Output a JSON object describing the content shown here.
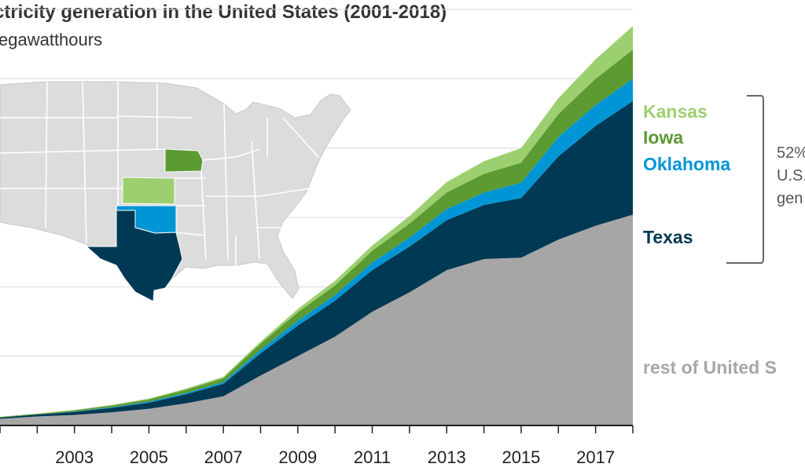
{
  "title": "ctricity generation in the United States (2001-2018)",
  "subtitle": "egawatthours",
  "colors": {
    "rest": "#a6a6a6",
    "texas": "#003953",
    "oklahoma": "#0096d6",
    "iowa": "#5c9a32",
    "kansas": "#9ccf6f",
    "grid": "#d9d9d9",
    "map_state": "#dcdcdc",
    "map_border": "#ffffff",
    "bracket": "#666666"
  },
  "chart_data": {
    "type": "area",
    "stacked": true,
    "x": [
      2001,
      2002,
      2003,
      2004,
      2005,
      2006,
      2007,
      2008,
      2009,
      2010,
      2011,
      2012,
      2013,
      2014,
      2015,
      2016,
      2017,
      2018
    ],
    "xtick_labels": [
      "2003",
      "2005",
      "2007",
      "2009",
      "2011",
      "2013",
      "2015",
      "2017"
    ],
    "xtick_values": [
      2003,
      2005,
      2007,
      2009,
      2011,
      2013,
      2015,
      2017
    ],
    "ylim": [
      0,
      300000
    ],
    "grid": true,
    "series": [
      {
        "name": "rest of United S",
        "color_key": "rest",
        "values": [
          4800,
          6500,
          7600,
          9500,
          12000,
          16000,
          21000,
          36000,
          50000,
          64000,
          82000,
          96000,
          112000,
          120000,
          121000,
          134000,
          144000,
          152000
        ]
      },
      {
        "name": "Texas",
        "color_key": "texas",
        "values": [
          900,
          1400,
          2200,
          3200,
          4400,
          6500,
          9000,
          16000,
          22000,
          26000,
          30000,
          33000,
          36000,
          39000,
          43000,
          60000,
          72000,
          82000
        ]
      },
      {
        "name": "Oklahoma",
        "color_key": "oklahoma",
        "values": [
          0,
          0,
          200,
          500,
          700,
          1000,
          1300,
          2500,
          3500,
          4000,
          5500,
          6500,
          8000,
          9000,
          11000,
          14000,
          15000,
          16000
        ]
      },
      {
        "name": "Iowa",
        "color_key": "iowa",
        "values": [
          400,
          500,
          900,
          1200,
          1700,
          2300,
          2800,
          4500,
          6000,
          7000,
          8500,
          10000,
          12000,
          13500,
          14500,
          16500,
          19000,
          21000
        ]
      },
      {
        "name": "Kansas",
        "color_key": "kansas",
        "values": [
          200,
          200,
          300,
          400,
          600,
          800,
          1000,
          1500,
          2500,
          3300,
          3800,
          5500,
          7500,
          9000,
          10500,
          11500,
          14000,
          17000
        ]
      }
    ],
    "labels": [
      {
        "text": "Kansas",
        "series": "Kansas",
        "color_key": "kansas"
      },
      {
        "text": "Iowa",
        "series": "Iowa",
        "color_key": "iowa"
      },
      {
        "text": "Oklahoma",
        "series": "Oklahoma",
        "color_key": "oklahoma"
      },
      {
        "text": "Texas",
        "series": "Texas",
        "color_key": "texas"
      },
      {
        "text": "rest of United S",
        "series": "rest of United S",
        "color_key": "rest"
      }
    ],
    "annotation": {
      "lines": [
        "52%",
        "U.S.",
        "gen"
      ]
    }
  },
  "map": {
    "highlights": [
      {
        "state": "Kansas",
        "color_key": "kansas"
      },
      {
        "state": "Iowa",
        "color_key": "iowa"
      },
      {
        "state": "Oklahoma",
        "color_key": "oklahoma"
      },
      {
        "state": "Texas",
        "color_key": "texas"
      }
    ]
  }
}
